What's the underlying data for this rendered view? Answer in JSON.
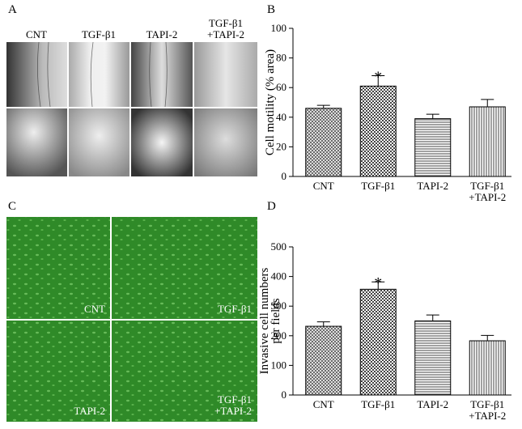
{
  "panels": {
    "A": {
      "label": "A",
      "columns": [
        "CNT",
        "TGF-β1",
        "TAPI-2",
        "TGF-β1\n+TAPI-2"
      ]
    },
    "C": {
      "label": "C",
      "cells": [
        "CNT",
        "TGF-β1",
        "TAPI-2",
        "TGF-β1\n+TAPI-2"
      ]
    }
  },
  "chart_data": [
    {
      "type": "bar",
      "panel_label": "B",
      "y_label": "Cell motility (% area)",
      "categories": [
        "CNT",
        "TGF-β1",
        "TAPI-2",
        "TGF-β1\n+TAPI-2"
      ],
      "values": [
        46,
        61,
        39,
        47
      ],
      "errors": [
        2,
        7,
        3,
        5
      ],
      "patterns": [
        "crosshatch",
        "checker",
        "horizontal",
        "vertical"
      ],
      "annotation": "*",
      "annotation_category": "TGF-β1",
      "ylim": [
        0,
        100
      ],
      "yticks": [
        0,
        20,
        40,
        60,
        80,
        100
      ]
    },
    {
      "type": "bar",
      "panel_label": "D",
      "y_label": "Invasive cell numbers\nper fields",
      "categories": [
        "CNT",
        "TGF-β1",
        "TAPI-2",
        "TGF-β1\n+TAPI-2"
      ],
      "values": [
        232,
        357,
        250,
        183
      ],
      "errors": [
        15,
        25,
        20,
        18
      ],
      "patterns": [
        "crosshatch",
        "checker",
        "horizontal",
        "vertical"
      ],
      "annotation": "*",
      "annotation_category": "TGF-β1",
      "ylim": [
        0,
        500
      ],
      "yticks": [
        0,
        100,
        200,
        300,
        400,
        500
      ]
    }
  ]
}
